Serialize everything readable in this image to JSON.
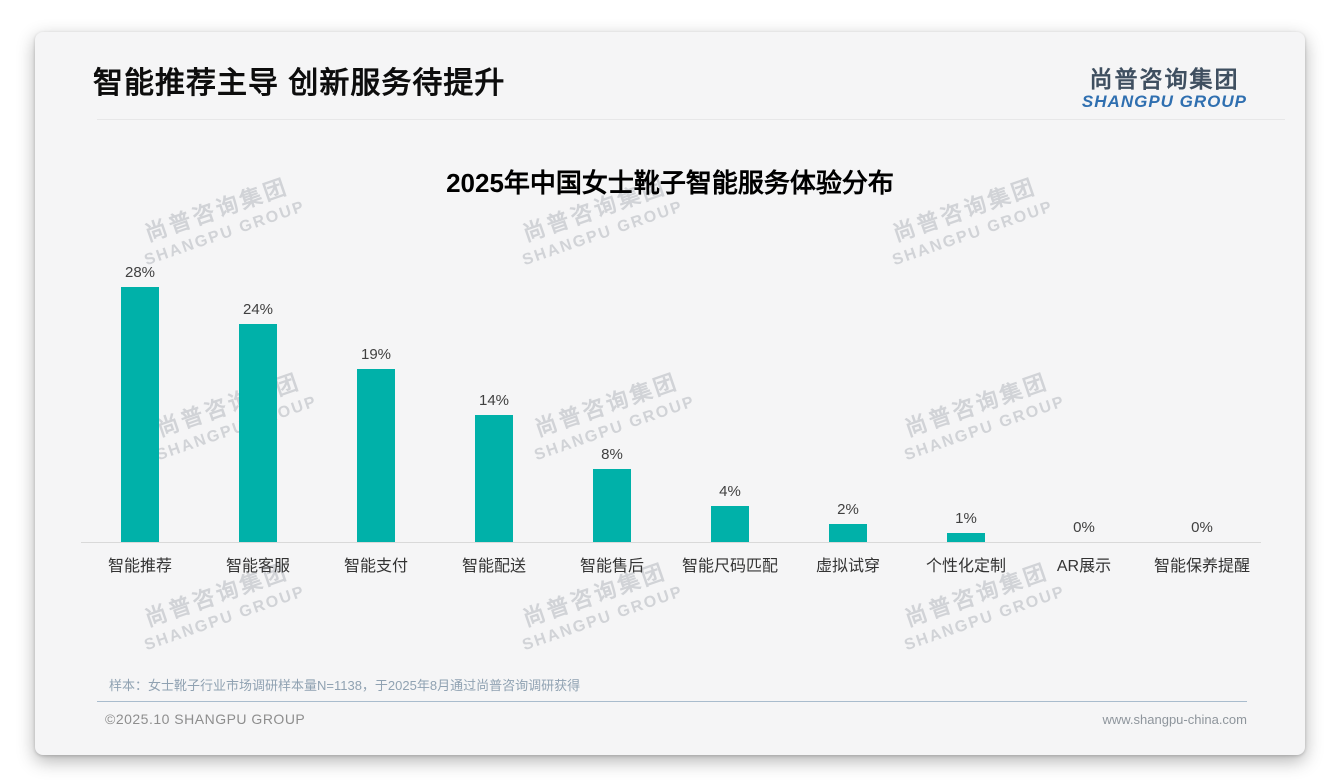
{
  "slide": {
    "title": "智能推荐主导 创新服务待提升",
    "logo": {
      "cn": "尚普咨询集团",
      "en": "SHANGPU GROUP"
    },
    "watermark": {
      "line1": "尚普咨询集团",
      "line2": "SHANGPU GROUP"
    },
    "footer": {
      "note": "样本：女士靴子行业市场调研样本量N=1138，于2025年8月通过尚普咨询调研获得",
      "copyright": "©2025.10 SHANGPU GROUP",
      "website": "www.shangpu-china.com"
    }
  },
  "chart_data": {
    "type": "bar",
    "title": "2025年中国女士靴子智能服务体验分布",
    "categories": [
      "智能推荐",
      "智能客服",
      "智能支付",
      "智能配送",
      "智能售后",
      "智能尺码匹配",
      "虚拟试穿",
      "个性化定制",
      "AR展示",
      "智能保养提醒"
    ],
    "values": [
      28,
      24,
      19,
      14,
      8,
      4,
      2,
      1,
      0,
      0
    ],
    "value_labels": [
      "28%",
      "24%",
      "19%",
      "14%",
      "8%",
      "4%",
      "2%",
      "1%",
      "0%",
      "0%"
    ],
    "bar_color": "#00b1a9",
    "xlabel": "",
    "ylabel": "",
    "ylim": [
      0,
      30
    ],
    "grid": false,
    "legend": null,
    "baseline_color": "#d9d9d9"
  }
}
